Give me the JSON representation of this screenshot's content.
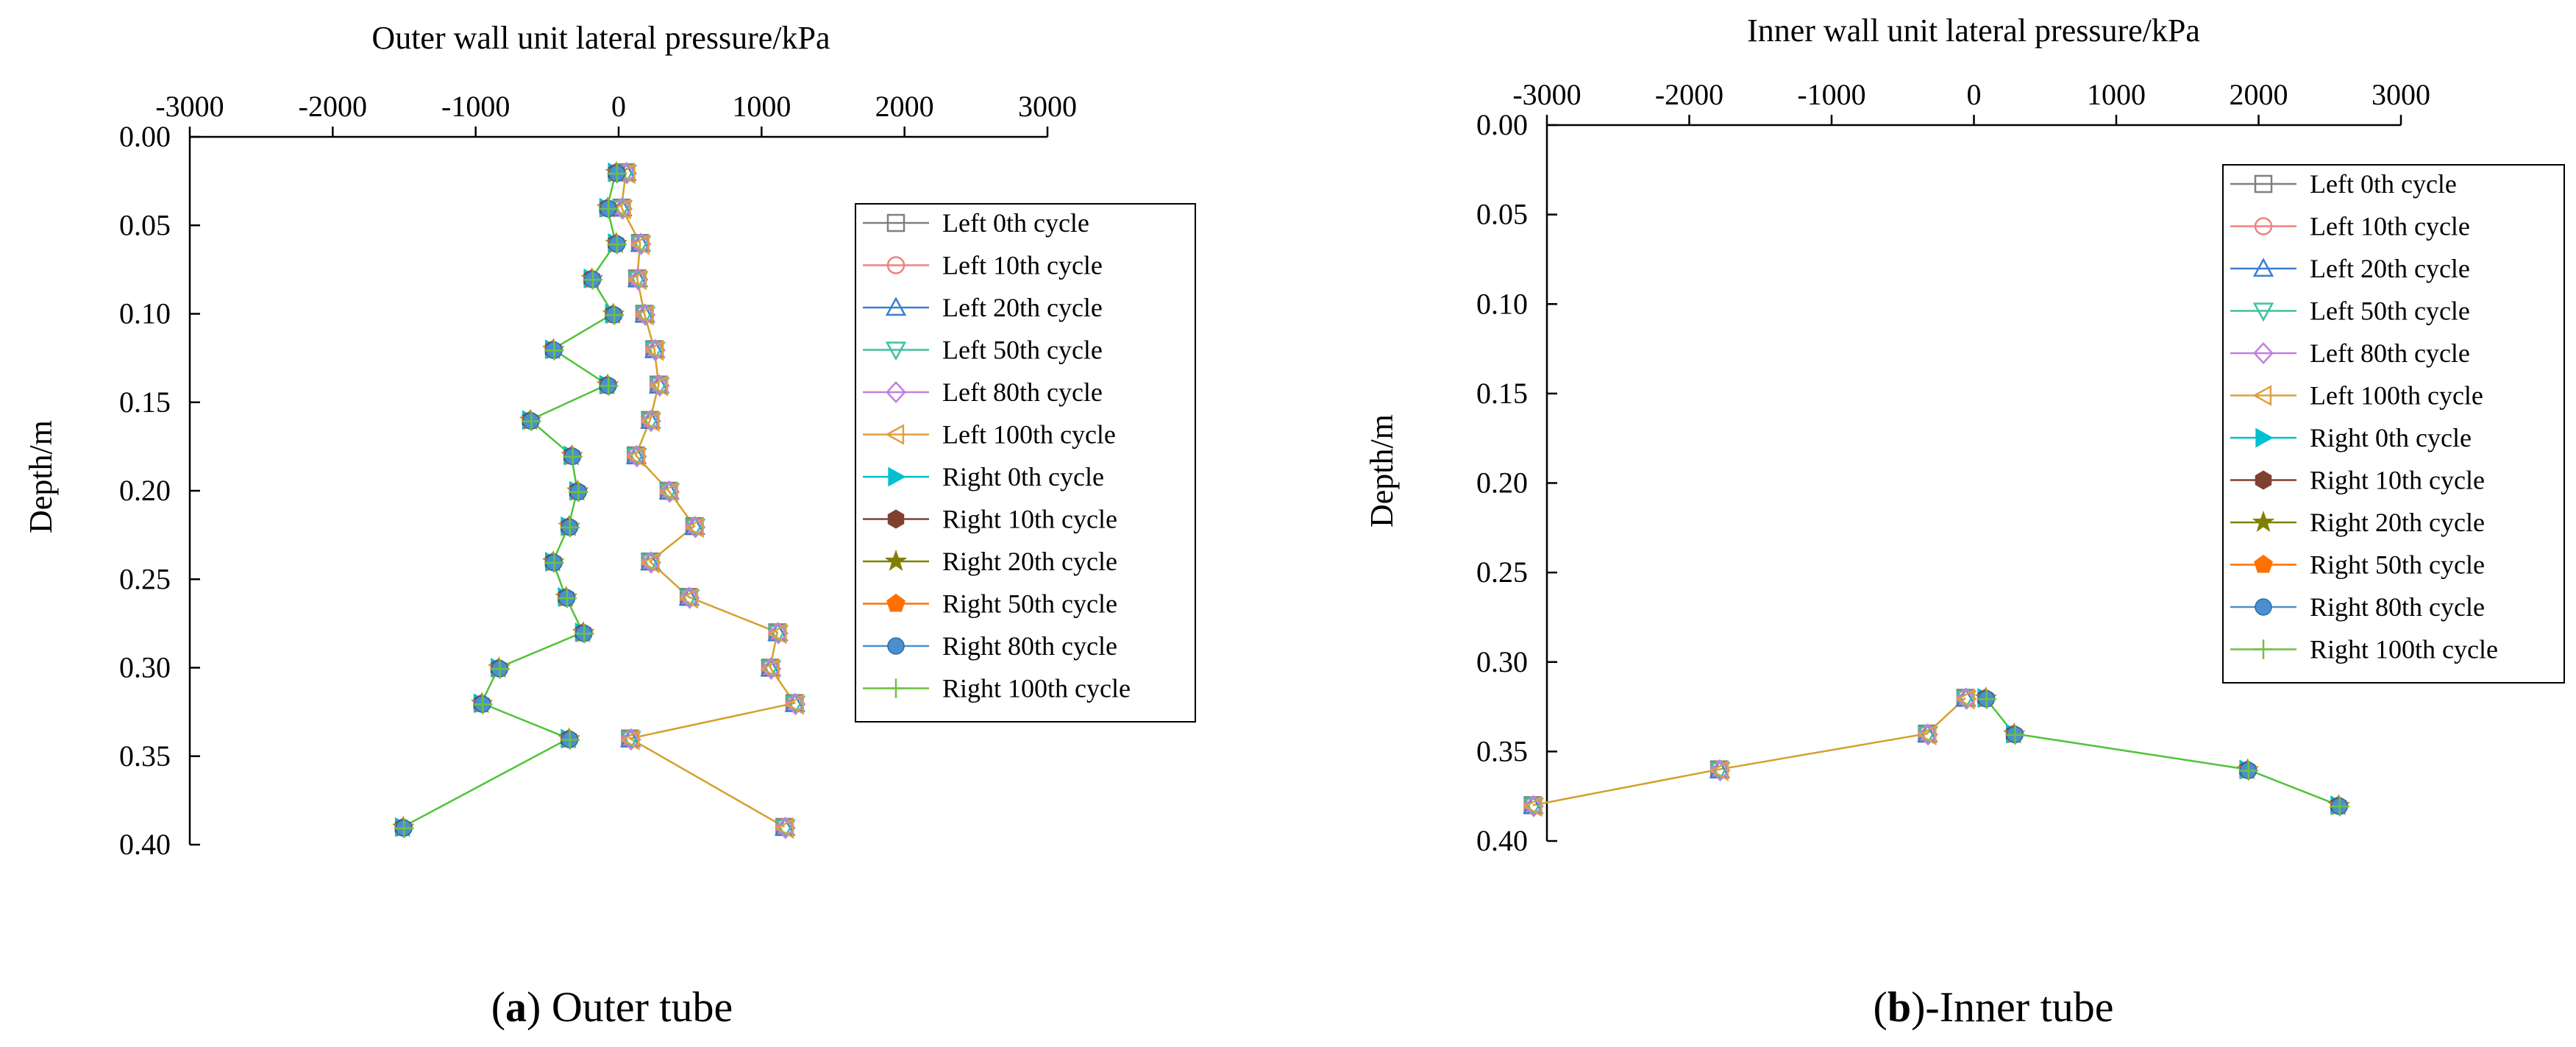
{
  "chart_data": [
    {
      "id": "outer",
      "type": "line",
      "title": "Outer wall unit lateral pressure/kPa",
      "xlabel": "Outer wall unit lateral pressure/kPa",
      "ylabel": "Depth/m",
      "xlim": [
        -3000,
        3000
      ],
      "ylim": [
        0.4,
        0.0
      ],
      "xticks": [
        -3000,
        -2000,
        -1000,
        0,
        1000,
        2000,
        3000
      ],
      "xtick_labels": [
        "-3000",
        "-2000",
        "-1000",
        "0",
        "1000",
        "2000",
        "3000"
      ],
      "yticks": [
        0.0,
        0.05,
        0.1,
        0.15,
        0.2,
        0.25,
        0.3,
        0.35,
        0.4
      ],
      "ytick_labels": [
        "0.00",
        "0.05",
        "0.10",
        "0.15",
        "0.20",
        "0.25",
        "0.30",
        "0.35",
        "0.40"
      ],
      "caption_letter": "a",
      "caption_rest": ") Outer tube",
      "legend_position": "right",
      "left_depth": [
        0.02,
        0.04,
        0.06,
        0.08,
        0.1,
        0.12,
        0.14,
        0.16,
        0.18,
        0.2,
        0.22,
        0.24,
        0.26,
        0.28,
        0.3,
        0.32,
        0.34,
        0.39
      ],
      "left_pressure": [
        50,
        20,
        150,
        130,
        180,
        250,
        280,
        220,
        120,
        350,
        530,
        220,
        490,
        1110,
        1060,
        1230,
        80,
        1160
      ],
      "right_depth": [
        0.02,
        0.04,
        0.06,
        0.08,
        0.1,
        0.12,
        0.14,
        0.16,
        0.18,
        0.2,
        0.22,
        0.24,
        0.26,
        0.28,
        0.3,
        0.32,
        0.34,
        0.39
      ],
      "right_pressure": [
        -20,
        -80,
        -20,
        -190,
        -40,
        -460,
        -80,
        -620,
        -330,
        -290,
        -350,
        -460,
        -370,
        -250,
        -840,
        -960,
        -350,
        -1510
      ],
      "series": [
        {
          "name": "Left 0th cycle",
          "side": "left",
          "marker": "square-open"
        },
        {
          "name": "Left 10th cycle",
          "side": "left",
          "marker": "circle-open"
        },
        {
          "name": "Left 20th cycle",
          "side": "left",
          "marker": "triangle-open"
        },
        {
          "name": "Left 50th cycle",
          "side": "left",
          "marker": "triangle-down-open"
        },
        {
          "name": "Left 80th cycle",
          "side": "left",
          "marker": "diamond-open"
        },
        {
          "name": "Left 100th cycle",
          "side": "left",
          "marker": "triangle-left-open"
        },
        {
          "name": "Right 0th cycle",
          "side": "right",
          "marker": "triangle-right-filled"
        },
        {
          "name": "Right 10th cycle",
          "side": "right",
          "marker": "hexagon-filled"
        },
        {
          "name": "Right 20th cycle",
          "side": "right",
          "marker": "star-filled"
        },
        {
          "name": "Right 50th cycle",
          "side": "right",
          "marker": "pentagon-filled"
        },
        {
          "name": "Right 80th cycle",
          "side": "right",
          "marker": "sphere-filled"
        },
        {
          "name": "Right 100th cycle",
          "side": "right",
          "marker": "plus"
        }
      ]
    },
    {
      "id": "inner",
      "type": "line",
      "title": "Inner wall unit lateral pressure/kPa",
      "xlabel": "Inner wall unit lateral pressure/kPa",
      "ylabel": "Depth/m",
      "xlim": [
        -3000,
        3000
      ],
      "ylim": [
        0.4,
        0.0
      ],
      "xticks": [
        -3000,
        -2000,
        -1000,
        0,
        1000,
        2000,
        3000
      ],
      "xtick_labels": [
        "-3000",
        "-2000",
        "-1000",
        "0",
        "1000",
        "2000",
        "3000"
      ],
      "yticks": [
        0.0,
        0.05,
        0.1,
        0.15,
        0.2,
        0.25,
        0.3,
        0.35,
        0.4
      ],
      "ytick_labels": [
        "0.00",
        "0.05",
        "0.10",
        "0.15",
        "0.20",
        "0.25",
        "0.30",
        "0.35",
        "0.40"
      ],
      "caption_letter": "b",
      "caption_rest": ")-Inner tube",
      "legend_position": "top-right",
      "left_depth": [
        0.32,
        0.34,
        0.36,
        0.38
      ],
      "left_pressure": [
        -60,
        -330,
        -1790,
        -3100
      ],
      "right_depth": [
        0.32,
        0.34,
        0.36,
        0.38
      ],
      "right_pressure": [
        80,
        280,
        1920,
        2560
      ],
      "series": [
        {
          "name": "Left 0th cycle",
          "side": "left",
          "marker": "square-open"
        },
        {
          "name": "Left 10th cycle",
          "side": "left",
          "marker": "circle-open"
        },
        {
          "name": "Left 20th cycle",
          "side": "left",
          "marker": "triangle-open"
        },
        {
          "name": "Left 50th cycle",
          "side": "left",
          "marker": "triangle-down-open"
        },
        {
          "name": "Left 80th cycle",
          "side": "left",
          "marker": "diamond-open"
        },
        {
          "name": "Left 100th cycle",
          "side": "left",
          "marker": "triangle-left-open"
        },
        {
          "name": "Right 0th cycle",
          "side": "right",
          "marker": "triangle-right-filled"
        },
        {
          "name": "Right 10th cycle",
          "side": "right",
          "marker": "hexagon-filled"
        },
        {
          "name": "Right 20th cycle",
          "side": "right",
          "marker": "star-filled"
        },
        {
          "name": "Right 50th cycle",
          "side": "right",
          "marker": "pentagon-filled"
        },
        {
          "name": "Right 80th cycle",
          "side": "right",
          "marker": "sphere-filled"
        },
        {
          "name": "Right 100th cycle",
          "side": "right",
          "marker": "plus"
        }
      ]
    }
  ],
  "styles": {
    "left_line_color": "#d4a02c",
    "right_line_color": "#4fc43a",
    "series_colors": [
      "#808080",
      "#f08080",
      "#3a7fd0",
      "#40c0a0",
      "#c080e0",
      "#e0a040",
      "#00c0d0",
      "#804030",
      "#808000",
      "#ff7000",
      "#4a90d0",
      "#70c040"
    ]
  }
}
